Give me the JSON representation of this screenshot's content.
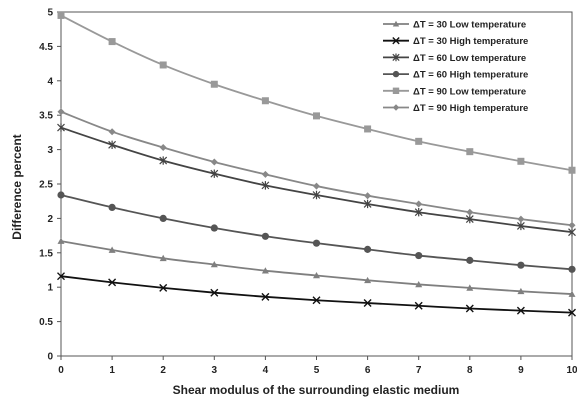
{
  "chart_data": {
    "type": "line",
    "title": "",
    "xlabel": "Shear modulus of the surrounding elastic medium",
    "ylabel": "Difference percent",
    "xlim": [
      0,
      10
    ],
    "ylim": [
      0,
      5
    ],
    "x": [
      0,
      1,
      2,
      3,
      4,
      5,
      6,
      7,
      8,
      9,
      10
    ],
    "x_ticks": [
      "0",
      "1",
      "2",
      "3",
      "4",
      "5",
      "6",
      "7",
      "8",
      "9",
      "10"
    ],
    "y_ticks": [
      "0",
      "0.5",
      "1",
      "1.5",
      "2",
      "2.5",
      "3",
      "3.5",
      "4",
      "4.5",
      "5"
    ],
    "grid": false,
    "legend_position": "top-right",
    "series": [
      {
        "name": "ΔT = 30 Low temperature",
        "marker": "triangle",
        "color": "#7f7f7f",
        "values": [
          1.67,
          1.54,
          1.42,
          1.33,
          1.24,
          1.17,
          1.1,
          1.04,
          0.99,
          0.94,
          0.9
        ]
      },
      {
        "name": "ΔT = 30 High temperature",
        "marker": "x",
        "color": "#111111",
        "values": [
          1.16,
          1.07,
          0.99,
          0.92,
          0.86,
          0.81,
          0.77,
          0.73,
          0.69,
          0.66,
          0.63
        ]
      },
      {
        "name": "ΔT = 60 Low temperature",
        "marker": "star",
        "color": "#444444",
        "values": [
          3.32,
          3.07,
          2.84,
          2.65,
          2.48,
          2.34,
          2.21,
          2.09,
          1.99,
          1.89,
          1.8
        ]
      },
      {
        "name": "ΔT = 60 High temperature",
        "marker": "circle",
        "color": "#555555",
        "values": [
          2.34,
          2.16,
          2.0,
          1.86,
          1.74,
          1.64,
          1.55,
          1.46,
          1.39,
          1.32,
          1.26
        ]
      },
      {
        "name": "ΔT = 90 Low temperature",
        "marker": "square",
        "color": "#999999",
        "values": [
          4.95,
          4.57,
          4.23,
          3.95,
          3.71,
          3.49,
          3.3,
          3.12,
          2.97,
          2.83,
          2.7
        ]
      },
      {
        "name": "ΔT = 90 High temperature",
        "marker": "diamond",
        "color": "#888888",
        "values": [
          3.55,
          3.26,
          3.03,
          2.82,
          2.64,
          2.47,
          2.33,
          2.21,
          2.09,
          1.99,
          1.9
        ]
      }
    ]
  }
}
